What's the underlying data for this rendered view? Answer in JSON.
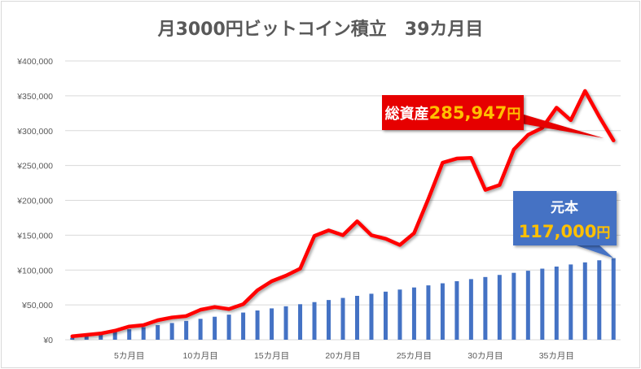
{
  "chart_data": {
    "type": "bar+line",
    "title": "月3000円ビットコイン積立　39カ月目",
    "xlabel": "",
    "ylabel": "",
    "ylim": [
      0,
      400000
    ],
    "yticks": [
      "¥0",
      "¥50,000",
      "¥100,000",
      "¥150,000",
      "¥200,000",
      "¥250,000",
      "¥300,000",
      "¥350,000",
      "¥400,000"
    ],
    "xticks": [
      "5カ月目",
      "10カ月目",
      "15カ月目",
      "20カ月目",
      "25カ月目",
      "30カ月目",
      "35カ月目"
    ],
    "grid": true,
    "months": [
      1,
      2,
      3,
      4,
      5,
      6,
      7,
      8,
      9,
      10,
      11,
      12,
      13,
      14,
      15,
      16,
      17,
      18,
      19,
      20,
      21,
      22,
      23,
      24,
      25,
      26,
      27,
      28,
      29,
      30,
      31,
      32,
      33,
      34,
      35,
      36,
      37,
      38,
      39
    ],
    "series": [
      {
        "type": "bar",
        "color": "#4472C4",
        "values": [
          3000,
          6000,
          9000,
          12000,
          15000,
          18000,
          21000,
          24000,
          27000,
          30000,
          33000,
          36000,
          39000,
          42000,
          45000,
          48000,
          51000,
          54000,
          57000,
          60000,
          63000,
          66000,
          69000,
          72000,
          75000,
          78000,
          81000,
          84000,
          87000,
          90000,
          93000,
          96000,
          99000,
          102000,
          105000,
          108000,
          111000,
          114000,
          117000
        ]
      },
      {
        "type": "line",
        "color": "#FF0000",
        "values": [
          5000,
          7000,
          9000,
          13000,
          19000,
          21000,
          28000,
          32000,
          34000,
          43000,
          47000,
          44000,
          51000,
          71000,
          84000,
          92000,
          102000,
          149000,
          157000,
          150000,
          170000,
          150000,
          145000,
          136000,
          153000,
          202000,
          254000,
          260000,
          261000,
          215000,
          222000,
          273000,
          294000,
          304000,
          333000,
          315000,
          357000,
          320000,
          285947
        ]
      }
    ],
    "annotations": {
      "total": {
        "label": "総資産",
        "value": "285,947",
        "unit": "円",
        "bg": "#E60000",
        "value_color": "#FFC000"
      },
      "principal": {
        "label": "元本",
        "value": "117,000",
        "unit": "円",
        "bg": "#4472C4",
        "value_color": "#FFC000"
      }
    }
  }
}
